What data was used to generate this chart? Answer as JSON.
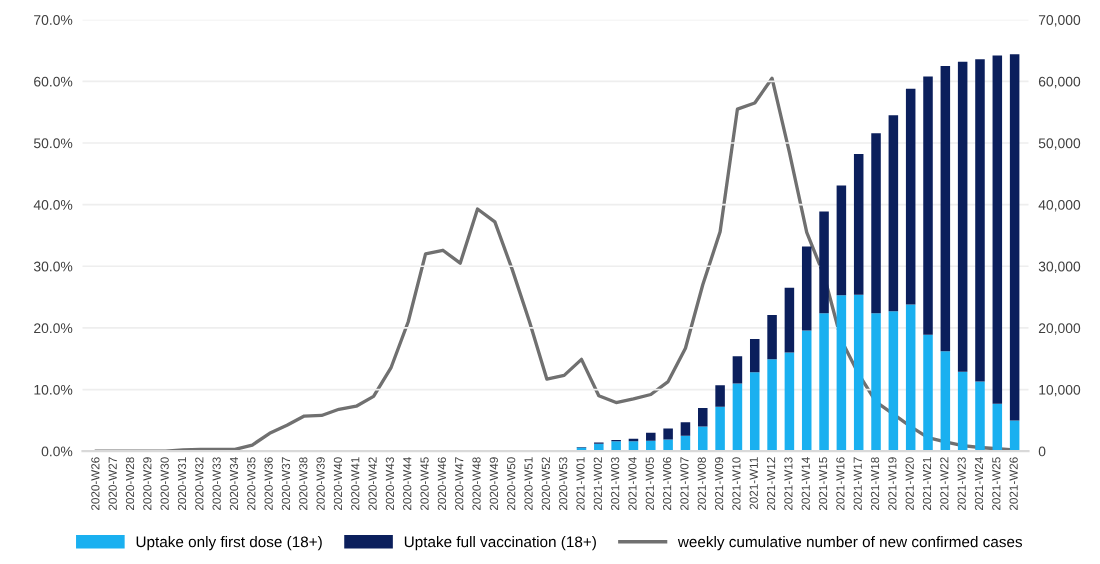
{
  "chart_data": {
    "type": "bar",
    "stacked": true,
    "categories": [
      "2020-W26",
      "2020-W27",
      "2020-W28",
      "2020-W29",
      "2020-W30",
      "2020-W31",
      "2020-W32",
      "2020-W33",
      "2020-W34",
      "2020-W35",
      "2020-W36",
      "2020-W37",
      "2020-W38",
      "2020-W39",
      "2020-W40",
      "2020-W41",
      "2020-W42",
      "2020-W43",
      "2020-W44",
      "2020-W45",
      "2020-W46",
      "2020-W47",
      "2020-W48",
      "2020-W49",
      "2020-W50",
      "2020-W51",
      "2020-W52",
      "2020-W53",
      "2021-W01",
      "2021-W02",
      "2021-W03",
      "2021-W04",
      "2021-W05",
      "2021-W06",
      "2021-W07",
      "2021-W08",
      "2021-W09",
      "2021-W10",
      "2021-W11",
      "2021-W12",
      "2021-W13",
      "2021-W14",
      "2021-W15",
      "2021-W16",
      "2021-W17",
      "2021-W18",
      "2021-W19",
      "2021-W20",
      "2021-W21",
      "2021-W22",
      "2021-W23",
      "2021-W24",
      "2021-W25",
      "2021-W26"
    ],
    "series": [
      {
        "name": "Uptake only first dose (18+)",
        "color": "#1ab0f0",
        "values": [
          null,
          null,
          null,
          null,
          null,
          null,
          null,
          null,
          null,
          null,
          null,
          null,
          null,
          null,
          null,
          null,
          null,
          null,
          null,
          null,
          null,
          null,
          null,
          null,
          null,
          null,
          null,
          null,
          0.6,
          1.2,
          1.6,
          1.6,
          1.7,
          1.9,
          2.5,
          4.0,
          7.2,
          11.0,
          12.8,
          14.9,
          16.0,
          19.6,
          22.4,
          25.3,
          25.4,
          22.4,
          22.7,
          23.8,
          18.9,
          16.2,
          12.9,
          11.3,
          7.7,
          5.0
        ]
      },
      {
        "name": "Uptake full vaccination (18+)",
        "color": "#0b1f5c",
        "values": [
          null,
          null,
          null,
          null,
          null,
          null,
          null,
          null,
          null,
          null,
          null,
          null,
          null,
          null,
          null,
          null,
          null,
          null,
          null,
          null,
          null,
          null,
          null,
          null,
          null,
          null,
          null,
          null,
          0.1,
          0.2,
          0.2,
          0.4,
          1.3,
          1.8,
          2.2,
          3.0,
          3.5,
          4.4,
          5.4,
          7.2,
          10.5,
          13.6,
          16.5,
          17.8,
          22.8,
          29.2,
          31.8,
          35.0,
          41.9,
          46.3,
          50.3,
          52.3,
          56.5,
          59.4
        ]
      },
      {
        "name": "weekly cumulative number of new confirmed cases",
        "type": "line",
        "axis": "y2",
        "color": "#707070",
        "values": [
          0,
          0,
          0,
          0,
          0,
          200,
          300,
          300,
          300,
          1000,
          2900,
          4200,
          5700,
          5800,
          6800,
          7300,
          8900,
          13500,
          21000,
          32000,
          32600,
          30500,
          39300,
          37200,
          29500,
          21000,
          11700,
          12300,
          14900,
          9000,
          7900,
          8500,
          9200,
          11300,
          16700,
          27000,
          35600,
          55500,
          56500,
          60500,
          48500,
          35500,
          28500,
          18000,
          12500,
          8000,
          6000,
          4000,
          2200,
          1500,
          900,
          600,
          400,
          200
        ]
      }
    ],
    "ylim": [
      0,
      70
    ],
    "yticks": [
      {
        "value": 0,
        "label": "0.0%"
      },
      {
        "value": 10,
        "label": "10.0%"
      },
      {
        "value": 20,
        "label": "20.0%"
      },
      {
        "value": 30,
        "label": "30.0%"
      },
      {
        "value": 40,
        "label": "40.0%"
      },
      {
        "value": 50,
        "label": "50.0%"
      },
      {
        "value": 60,
        "label": "60.0%"
      },
      {
        "value": 70,
        "label": "70.0%"
      }
    ],
    "y2lim": [
      0,
      70000
    ],
    "y2ticks": [
      0,
      {
        "value": 10000,
        "label": "10,000"
      },
      {
        "value": 20000,
        "label": "20,000"
      },
      {
        "value": 30000,
        "label": "30,000"
      },
      {
        "value": 40000,
        "label": "40,000"
      },
      {
        "value": 50000,
        "label": "50,000"
      },
      {
        "value": 60000,
        "label": "60,000"
      },
      {
        "value": 70000,
        "label": "70,000"
      }
    ],
    "grid": "y",
    "legend": "bottom",
    "line_style": "solid"
  }
}
